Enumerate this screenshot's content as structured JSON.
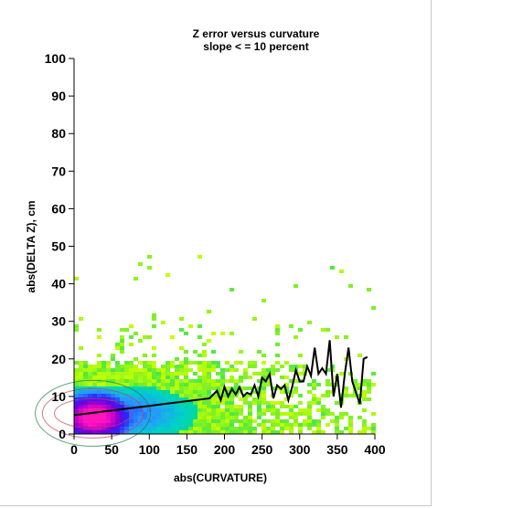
{
  "chart_data": {
    "type": "heatmap",
    "title": "Z error versus curvature",
    "subtitle": "slope < = 10 percent",
    "xlabel": "abs(CURVATURE)",
    "ylabel": "abs(DELTA Z), cm",
    "xlim": [
      0,
      400
    ],
    "ylim": [
      0,
      100
    ],
    "x_ticks": [
      0,
      50,
      100,
      150,
      200,
      250,
      300,
      350,
      400
    ],
    "y_ticks": [
      0,
      10,
      20,
      30,
      40,
      50,
      60,
      70,
      80,
      90,
      100
    ],
    "grid": false,
    "density_peak": {
      "x": 25,
      "y": 5
    },
    "colors": {
      "low_density": "#c8ff00",
      "mid_density": "#00d2c8",
      "high_density": "#2020ff",
      "peak_density": "#ff10c0",
      "mean_line": "#000000"
    },
    "mean_line": {
      "x": [
        0,
        20,
        40,
        60,
        80,
        100,
        120,
        140,
        160,
        180,
        190,
        195,
        200,
        205,
        210,
        215,
        220,
        225,
        230,
        235,
        240,
        245,
        250,
        255,
        260,
        265,
        270,
        275,
        280,
        285,
        290,
        295,
        300,
        305,
        310,
        315,
        320,
        325,
        330,
        335,
        340,
        345,
        350,
        355,
        360,
        365,
        370,
        375,
        380,
        385,
        390
      ],
      "y": [
        5.0,
        5.5,
        6.0,
        6.5,
        7.0,
        7.5,
        8.0,
        8.5,
        9.0,
        9.5,
        11.5,
        9.0,
        12.5,
        10.0,
        12.0,
        10.5,
        12.5,
        10.0,
        11.0,
        10.5,
        13.0,
        10.0,
        15.0,
        14.0,
        16.0,
        9.5,
        13.0,
        12.0,
        13.0,
        9.0,
        12.5,
        17.0,
        14.0,
        14.0,
        18.0,
        15.5,
        23.0,
        16.0,
        17.5,
        16.0,
        25.0,
        10.0,
        16.0,
        7.0,
        16.0,
        23.0,
        14.0,
        11.0,
        8.0,
        20.0,
        20.5
      ]
    }
  }
}
